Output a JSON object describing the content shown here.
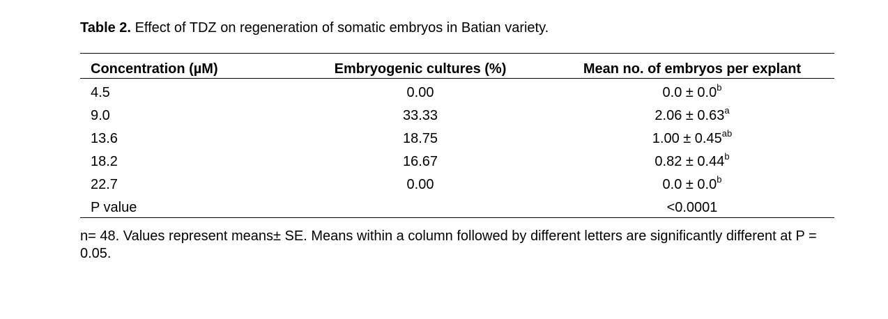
{
  "caption": {
    "label": "Table 2.",
    "text": "Effect of TDZ on regeneration of somatic embryos in Batian variety."
  },
  "table": {
    "headers": [
      "Concentration (µM)",
      "Embryogenic cultures (%)",
      "Mean no. of embryos per explant"
    ],
    "rows": [
      {
        "concentration": "4.5",
        "cultures": "0.00",
        "mean": "0.0 ± 0.0",
        "letter": "b"
      },
      {
        "concentration": "9.0",
        "cultures": "33.33",
        "mean": "2.06 ± 0.63",
        "letter": "a"
      },
      {
        "concentration": "13.6",
        "cultures": "18.75",
        "mean": "1.00 ± 0.45",
        "letter": "ab"
      },
      {
        "concentration": "18.2",
        "cultures": "16.67",
        "mean": "0.82 ± 0.44",
        "letter": "b"
      },
      {
        "concentration": "22.7",
        "cultures": "0.00",
        "mean": "0.0 ± 0.0",
        "letter": "b"
      }
    ],
    "p_row": {
      "label": "P value",
      "value": "<0.0001"
    }
  },
  "footnote": "n= 48. Values represent means± SE. Means within a column followed by different letters are significantly different at P = 0.05."
}
